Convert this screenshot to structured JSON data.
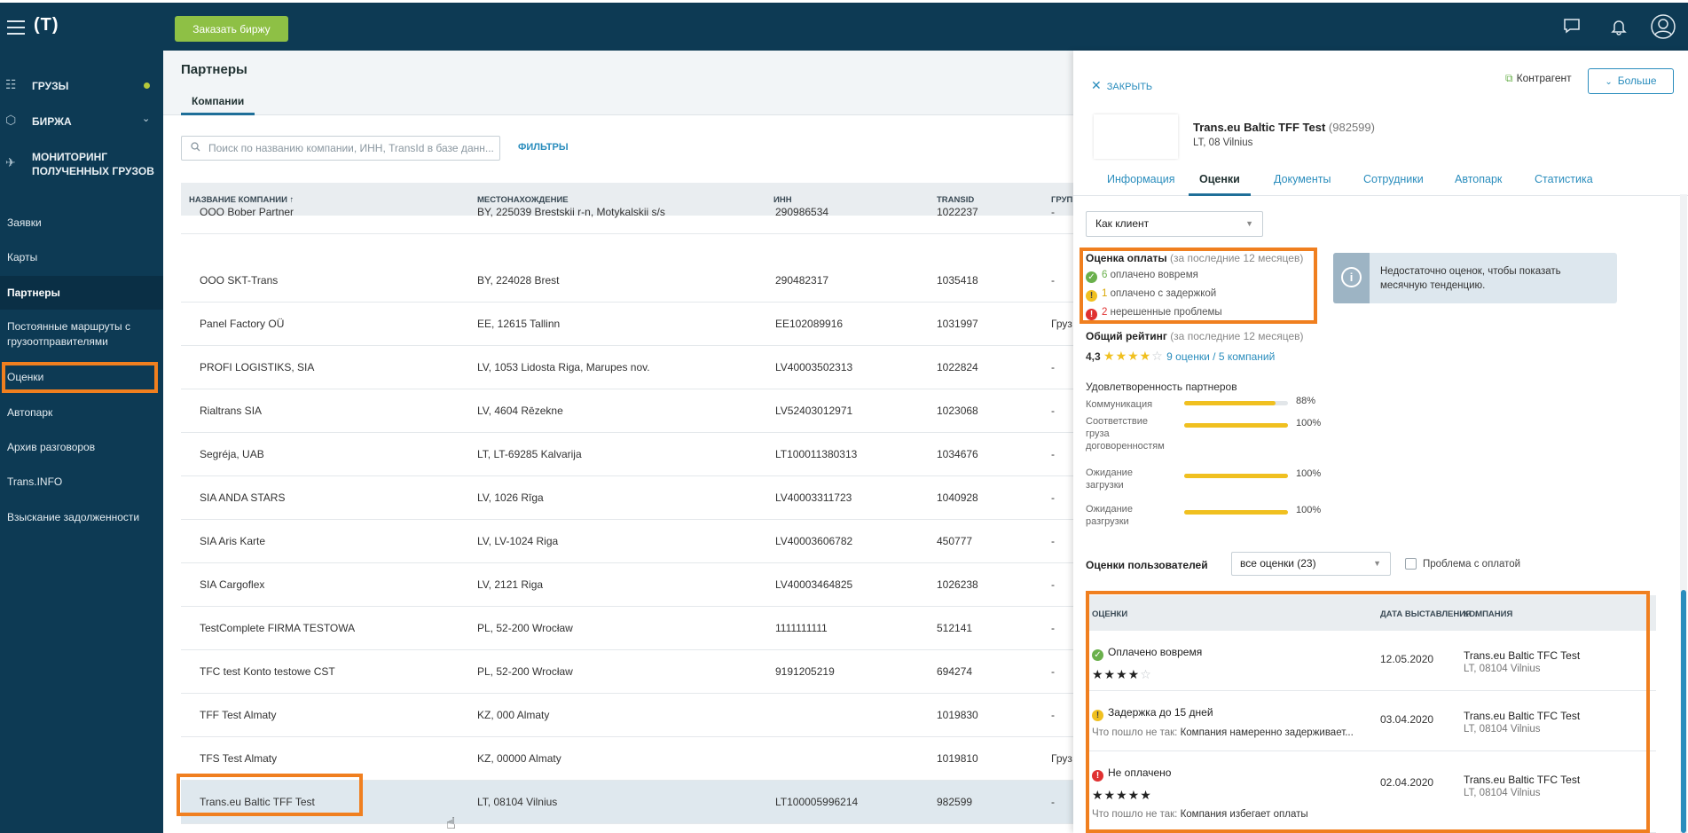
{
  "topbar": {
    "logo": "(T)",
    "order_button": "Заказать биржу",
    "icons": [
      "chat-icon",
      "bell-icon",
      "user-icon"
    ]
  },
  "sidebar": {
    "main_items": [
      {
        "icon": "cargo-icon",
        "label": "ГРУЗЫ"
      },
      {
        "icon": "exchange-icon",
        "label": "БИРЖА"
      },
      {
        "icon": "satellite-icon",
        "label": "МОНИТОРИНГ ПОЛУЧЕННЫХ ГРУЗОВ"
      }
    ],
    "items": [
      {
        "label": "Заявки"
      },
      {
        "label": "Карты"
      },
      {
        "label": "Партнеры"
      },
      {
        "label": "Постоянные маршруты с грузоотправителями"
      },
      {
        "label": "Оценки"
      },
      {
        "label": "Автопарк"
      },
      {
        "label": "Архив разговоров"
      },
      {
        "label": "Trans.INFO"
      },
      {
        "label": "Взыскание задолженности"
      }
    ]
  },
  "main": {
    "title": "Партнеры",
    "tab": "Компании",
    "search_placeholder": "Поиск по названию компании, ИНН, TransId в базе данн...",
    "filters": "ФИЛЬТРЫ",
    "columns": [
      "НАЗВАНИЕ КОМПАНИИ ↑",
      "МЕСТОНАХОЖДЕНИЕ",
      "ИНН",
      "TRANSID",
      "ГРУП"
    ],
    "rows": [
      {
        "name": "OOO Bober Partner",
        "loc": "BY, 225039 Brestskii r-n, Motykalskii s/s",
        "inn": "290986534",
        "tid": "1022237",
        "grp": "-"
      },
      {
        "name": "OOO SKT-Trans",
        "loc": "BY, 224028 Brest",
        "inn": "290482317",
        "tid": "1035418",
        "grp": "-"
      },
      {
        "name": "Panel Factory OÜ",
        "loc": "EE, 12615 Tallinn",
        "inn": "EE102089916",
        "tid": "1031997",
        "grp": "Груз"
      },
      {
        "name": "PROFI LOGISTIKS, SIA",
        "loc": "LV, 1053 Lidosta Riga, Marupes nov.",
        "inn": "LV40003502313",
        "tid": "1022824",
        "grp": "-"
      },
      {
        "name": "Rialtrans SIA",
        "loc": "LV, 4604 Rēzekne",
        "inn": "LV52403012971",
        "tid": "1023068",
        "grp": "-"
      },
      {
        "name": "Segréja, UAB",
        "loc": "LT, LT-69285 Kalvarija",
        "inn": "LT100011380313",
        "tid": "1034676",
        "grp": "-"
      },
      {
        "name": "SIA ANDA STARS",
        "loc": "LV, 1026 Rīga",
        "inn": "LV40003311723",
        "tid": "1040928",
        "grp": "-"
      },
      {
        "name": "SIA Aris Karte",
        "loc": "LV, LV-1024 Riga",
        "inn": "LV40003606782",
        "tid": "450777",
        "grp": "-"
      },
      {
        "name": "SIA Cargoflex",
        "loc": "LV, 2121 Riga",
        "inn": "LV40003464825",
        "tid": "1026238",
        "grp": "-"
      },
      {
        "name": "TestComplete FIRMA TESTOWA",
        "loc": "PL, 52-200 Wrocław",
        "inn": "1111111111",
        "tid": "512141",
        "grp": "-"
      },
      {
        "name": "TFC test Konto testowe CST",
        "loc": "PL, 52-200 Wrocław",
        "inn": "9191205219",
        "tid": "694274",
        "grp": "-"
      },
      {
        "name": "TFF Test Almaty",
        "loc": "KZ, 000 Almaty",
        "inn": "",
        "tid": "1019830",
        "grp": "-"
      },
      {
        "name": "TFS Test Almaty",
        "loc": "KZ, 00000 Almaty",
        "inn": "",
        "tid": "1019810",
        "grp": "Груз"
      },
      {
        "name": "Trans.eu Baltic TFF Test",
        "loc": "LT, 08104 Vilnius",
        "inn": "LT100005996214",
        "tid": "982599",
        "grp": "-"
      }
    ]
  },
  "panel": {
    "close": "ЗАКРЫТЬ",
    "kontragent": "Контрагент",
    "more": "Больше",
    "company_name": "Trans.eu Baltic TFF Test",
    "company_id": "(982599)",
    "company_loc": "LT, 08 Vilnius",
    "tabs": [
      "Информация",
      "Оценки",
      "Документы",
      "Сотрудники",
      "Автопарк",
      "Статистика"
    ],
    "as_select": "Как клиент",
    "payment": {
      "title": "Оценка оплаты",
      "period": "(за последние 12 месяцев)",
      "on_time_n": "6",
      "on_time": "оплачено вовремя",
      "delay_n": "1",
      "delay": "оплачено с задержкой",
      "issues_n": "2",
      "issues": "нерешенные проблемы"
    },
    "info_text": "Недостаточно оценок, чтобы показать месячную тенденцию.",
    "general": {
      "title": "Общий рейтинг",
      "period": "(за последние 12 месяцев)",
      "score": "4,3",
      "stars": 4,
      "reviews": "9 оценки / 5 компаний"
    },
    "satisfaction": {
      "title": "Удовлетворенность партнеров",
      "items": [
        {
          "label": "Коммуникация",
          "pct": "88%",
          "value": 88
        },
        {
          "label": "Соответствие груза договоренностям",
          "pct": "100%",
          "value": 100
        },
        {
          "label": "Ожидание загрузки",
          "pct": "100%",
          "value": 100
        },
        {
          "label": "Ожидание разгрузки",
          "pct": "100%",
          "value": 100
        }
      ]
    },
    "user_ratings": {
      "title": "Оценки пользователей",
      "select": "все оценки (23)",
      "checkbox": "Проблема с оплатой",
      "columns": [
        "ОЦЕНКИ",
        "ДАТА ВЫСТАВЛЕНИЯ ↓",
        "КОМПАНИЯ"
      ],
      "rows": [
        {
          "status": "Оплачено вовремя",
          "type": "g",
          "stars": 4,
          "date": "12.05.2020",
          "company": "Trans.eu Baltic TFC Test",
          "loc": "LT, 08104 Vilnius",
          "wrong_label": "",
          "wrong": ""
        },
        {
          "status": "Задержка до 15 дней",
          "type": "y",
          "stars": 0,
          "date": "03.04.2020",
          "company": "Trans.eu Baltic TFC Test",
          "loc": "LT, 08104 Vilnius",
          "wrong_label": "Что пошло не так:",
          "wrong": "Компания намеренно задерживает..."
        },
        {
          "status": "Не оплачено",
          "type": "r",
          "stars": 5,
          "date": "02.04.2020",
          "company": "Trans.eu Baltic TFC Test",
          "loc": "LT, 08104 Vilnius",
          "wrong_label": "Что пошло не так:",
          "wrong": "Компания избегает оплаты"
        }
      ]
    }
  }
}
